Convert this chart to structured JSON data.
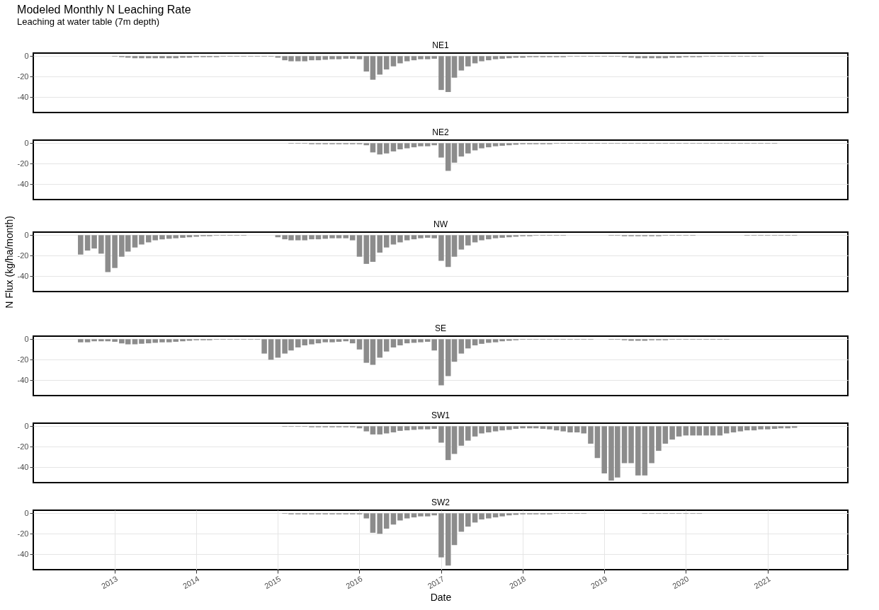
{
  "chart_data": [
    {
      "type": "bar",
      "title": "Modeled Monthly N Leaching Rate",
      "subtitle": "Leaching at water table (7m depth)",
      "tick_labels": "y",
      "grid": true,
      "xlim": [
        "2012-01-18",
        "2021-12-10"
      ],
      "ylim": [
        -55,
        3
      ],
      "yticks": [
        0,
        -20,
        -40
      ],
      "x": [
        "2013-01",
        "2013-02",
        "2013-03",
        "2013-04",
        "2013-05",
        "2013-06",
        "2013-07",
        "2013-08",
        "2013-09",
        "2013-10",
        "2013-11",
        "2013-12",
        "2014-01",
        "2014-02",
        "2014-03",
        "2014-04",
        "2014-05",
        "2014-06",
        "2014-07",
        "2014-08",
        "2014-09",
        "2014-10",
        "2014-11",
        "2014-12",
        "2015-01",
        "2015-02",
        "2015-03",
        "2015-04",
        "2015-05",
        "2015-06",
        "2015-07",
        "2015-08",
        "2015-09",
        "2015-10",
        "2015-11",
        "2015-12",
        "2016-01",
        "2016-02",
        "2016-03",
        "2016-04",
        "2016-05",
        "2016-06",
        "2016-07",
        "2016-08",
        "2016-09",
        "2016-10",
        "2016-11",
        "2016-12",
        "2017-01",
        "2017-02",
        "2017-03",
        "2017-04",
        "2017-05",
        "2017-06",
        "2017-07",
        "2017-08",
        "2017-09",
        "2017-10",
        "2017-11",
        "2017-12",
        "2018-01",
        "2018-02",
        "2018-03",
        "2018-04",
        "2018-05",
        "2018-06",
        "2018-07",
        "2018-08",
        "2018-09",
        "2018-10",
        "2018-11",
        "2018-12",
        "2019-01",
        "2019-02",
        "2019-03",
        "2019-04",
        "2019-05",
        "2019-06",
        "2019-07",
        "2019-08",
        "2019-09",
        "2019-10",
        "2019-11",
        "2019-12",
        "2020-01",
        "2020-02",
        "2020-03",
        "2020-04",
        "2020-05",
        "2020-06",
        "2020-07",
        "2020-08",
        "2020-09",
        "2020-10",
        "2020-11",
        "2020-12"
      ],
      "series": [
        {
          "name": "NE1",
          "color": "#8c8c8c",
          "values": [
            -0.5,
            -1,
            -1.5,
            -2,
            -2,
            -2,
            -2,
            -2,
            -2,
            -2,
            -1.5,
            -1.5,
            -1,
            -1,
            -1,
            -1,
            -0.5,
            -0.5,
            -0.5,
            -0.5,
            -0.5,
            -0.5,
            -0.5,
            -0.5,
            -1.5,
            -4,
            -5,
            -5,
            -5,
            -4,
            -4,
            -3.5,
            -3,
            -3,
            -2.5,
            -2.5,
            -3,
            -15,
            -23,
            -18,
            -13,
            -10,
            -7,
            -5,
            -4,
            -3,
            -3,
            -2.5,
            -33,
            -35,
            -21,
            -14,
            -10,
            -7,
            -5,
            -4,
            -3,
            -2.5,
            -2,
            -1.5,
            -1.5,
            -1,
            -1,
            -1,
            -1,
            -1,
            -1,
            -0.5,
            -0.5,
            -0.5,
            -0.5,
            -0.5,
            -0.5,
            -0.5,
            -0.5,
            -1,
            -1.5,
            -2,
            -2,
            -2,
            -2,
            -2,
            -1.5,
            -1.5,
            -1,
            -1,
            -1,
            -0.5,
            -0.5,
            -0.5,
            -0.5,
            -0.5,
            -0.5,
            -0.5,
            -0.5,
            -0.5
          ]
        }
      ]
    },
    {
      "type": "bar",
      "tick_labels": "y",
      "grid": true,
      "xlim": [
        "2012-01-18",
        "2021-12-10"
      ],
      "ylim": [
        -55,
        3
      ],
      "yticks": [
        0,
        -20,
        -40
      ],
      "x": [
        "2015-03",
        "2015-04",
        "2015-05",
        "2015-06",
        "2015-07",
        "2015-08",
        "2015-09",
        "2015-10",
        "2015-11",
        "2015-12",
        "2016-01",
        "2016-02",
        "2016-03",
        "2016-04",
        "2016-05",
        "2016-06",
        "2016-07",
        "2016-08",
        "2016-09",
        "2016-10",
        "2016-11",
        "2016-12",
        "2017-01",
        "2017-02",
        "2017-03",
        "2017-04",
        "2017-05",
        "2017-06",
        "2017-07",
        "2017-08",
        "2017-09",
        "2017-10",
        "2017-11",
        "2017-12",
        "2018-01",
        "2018-02",
        "2018-03",
        "2018-04",
        "2018-05",
        "2018-06",
        "2018-07",
        "2018-08",
        "2018-09",
        "2018-10",
        "2018-11",
        "2018-12",
        "2019-01",
        "2019-02",
        "2019-03",
        "2019-04",
        "2019-05",
        "2019-06",
        "2019-07",
        "2019-08",
        "2019-09",
        "2019-10",
        "2019-11",
        "2019-12",
        "2020-01",
        "2020-02",
        "2020-03",
        "2020-04",
        "2020-05",
        "2020-06",
        "2020-07",
        "2020-08",
        "2020-09",
        "2020-10",
        "2020-11",
        "2020-12",
        "2021-01",
        "2021-02"
      ],
      "series": [
        {
          "name": "NE2",
          "color": "#8c8c8c",
          "values": [
            -0.5,
            -0.5,
            -0.5,
            -1,
            -1,
            -1,
            -1,
            -1,
            -1,
            -1,
            -1,
            -2,
            -9,
            -11,
            -10,
            -8,
            -6,
            -5,
            -4,
            -3,
            -3,
            -2,
            -14,
            -27,
            -19,
            -13,
            -10,
            -7,
            -5,
            -4,
            -3,
            -2.5,
            -2,
            -1.5,
            -1,
            -1,
            -1,
            -1,
            -1,
            -0.5,
            -0.5,
            -0.5,
            -0.5,
            -0.5,
            -0.5,
            -0.5,
            -0.5,
            -0.5,
            -0.5,
            -0.5,
            -0.5,
            -0.5,
            -0.5,
            -0.5,
            -0.5,
            -0.5,
            -0.5,
            -0.5,
            -0.5,
            -0.5,
            -0.5,
            -0.5,
            -0.5,
            -0.5,
            -0.5,
            -0.5,
            -0.5,
            -0.5,
            -0.5,
            -0.5,
            -0.5,
            -0.5
          ]
        }
      ]
    },
    {
      "type": "bar",
      "ylabel": "N Flux (kg/ha/month)",
      "tick_labels": "y",
      "grid": true,
      "xlim": [
        "2012-01-18",
        "2021-12-10"
      ],
      "ylim": [
        -55,
        3
      ],
      "yticks": [
        0,
        -20,
        -40
      ],
      "x": [
        "2012-08",
        "2012-09",
        "2012-10",
        "2012-11",
        "2012-12",
        "2013-01",
        "2013-02",
        "2013-03",
        "2013-04",
        "2013-05",
        "2013-06",
        "2013-07",
        "2013-08",
        "2013-09",
        "2013-10",
        "2013-11",
        "2013-12",
        "2014-01",
        "2014-02",
        "2014-03",
        "2014-04",
        "2014-05",
        "2014-06",
        "2014-07",
        "2014-08",
        "2014-09",
        "2014-10",
        "2014-11",
        "2014-12",
        "2015-01",
        "2015-02",
        "2015-03",
        "2015-04",
        "2015-05",
        "2015-06",
        "2015-07",
        "2015-08",
        "2015-09",
        "2015-10",
        "2015-11",
        "2015-12",
        "2016-01",
        "2016-02",
        "2016-03",
        "2016-04",
        "2016-05",
        "2016-06",
        "2016-07",
        "2016-08",
        "2016-09",
        "2016-10",
        "2016-11",
        "2016-12",
        "2017-01",
        "2017-02",
        "2017-03",
        "2017-04",
        "2017-05",
        "2017-06",
        "2017-07",
        "2017-08",
        "2017-09",
        "2017-10",
        "2017-11",
        "2017-12",
        "2018-01",
        "2018-02",
        "2018-03",
        "2018-04",
        "2018-05",
        "2018-06",
        "2018-07",
        "2018-08",
        "2018-09",
        "2018-10",
        "2018-11",
        "2018-12",
        "2019-01",
        "2019-02",
        "2019-03",
        "2019-04",
        "2019-05",
        "2019-06",
        "2019-07",
        "2019-08",
        "2019-09",
        "2019-10",
        "2019-11",
        "2019-12",
        "2020-01",
        "2020-02",
        "2020-03",
        "2020-04",
        "2020-05",
        "2020-06",
        "2020-07",
        "2020-08",
        "2020-09",
        "2020-10",
        "2020-11",
        "2020-12",
        "2021-01",
        "2021-02",
        "2021-03",
        "2021-04",
        "2021-05"
      ],
      "series": [
        {
          "name": "NW",
          "color": "#8c8c8c",
          "values": [
            -19,
            -15,
            -13,
            -18,
            -36,
            -32,
            -21,
            -16,
            -12,
            -9,
            -7,
            -5,
            -4,
            -3.5,
            -3,
            -2.5,
            -2,
            -1.5,
            -1,
            -1,
            -0.5,
            -0.5,
            -0.5,
            -0.5,
            -0.5,
            null,
            null,
            null,
            null,
            -2,
            -4,
            -5,
            -5,
            -5,
            -4,
            -4,
            -3.5,
            -3,
            -3,
            -3,
            -5,
            -21,
            -28,
            -26,
            -17,
            -12,
            -9,
            -7,
            -5,
            -4,
            -3,
            -2.5,
            -3,
            -25,
            -31,
            -21,
            -14,
            -10,
            -7,
            -5,
            -4,
            -3,
            -2.5,
            -2,
            -1.5,
            -1,
            -1,
            -0.5,
            -0.5,
            -0.5,
            -0.5,
            -0.5,
            null,
            null,
            null,
            null,
            null,
            null,
            -0.5,
            -0.5,
            -1,
            -1,
            -1,
            -1,
            -1,
            -1,
            -0.5,
            -0.5,
            -0.5,
            -0.5,
            -0.5,
            null,
            null,
            null,
            null,
            null,
            null,
            null,
            -0.5,
            -0.5,
            -0.5,
            -0.5,
            -0.5,
            -0.5,
            -0.5,
            -0.5
          ]
        }
      ]
    },
    {
      "type": "bar",
      "tick_labels": "y",
      "grid": true,
      "xlim": [
        "2012-01-18",
        "2021-12-10"
      ],
      "ylim": [
        -55,
        3
      ],
      "yticks": [
        0,
        -20,
        -40
      ],
      "x": [
        "2012-08",
        "2012-09",
        "2012-10",
        "2012-11",
        "2012-12",
        "2013-01",
        "2013-02",
        "2013-03",
        "2013-04",
        "2013-05",
        "2013-06",
        "2013-07",
        "2013-08",
        "2013-09",
        "2013-10",
        "2013-11",
        "2013-12",
        "2014-01",
        "2014-02",
        "2014-03",
        "2014-04",
        "2014-05",
        "2014-06",
        "2014-07",
        "2014-08",
        "2014-09",
        "2014-10",
        "2014-11",
        "2014-12",
        "2015-01",
        "2015-02",
        "2015-03",
        "2015-04",
        "2015-05",
        "2015-06",
        "2015-07",
        "2015-08",
        "2015-09",
        "2015-10",
        "2015-11",
        "2015-12",
        "2016-01",
        "2016-02",
        "2016-03",
        "2016-04",
        "2016-05",
        "2016-06",
        "2016-07",
        "2016-08",
        "2016-09",
        "2016-10",
        "2016-11",
        "2016-12",
        "2017-01",
        "2017-02",
        "2017-03",
        "2017-04",
        "2017-05",
        "2017-06",
        "2017-07",
        "2017-08",
        "2017-09",
        "2017-10",
        "2017-11",
        "2017-12",
        "2018-01",
        "2018-02",
        "2018-03",
        "2018-04",
        "2018-05",
        "2018-06",
        "2018-07",
        "2018-08",
        "2018-09",
        "2018-10",
        "2018-11",
        "2018-12",
        "2019-01",
        "2019-02",
        "2019-03",
        "2019-04",
        "2019-05",
        "2019-06",
        "2019-07",
        "2019-08",
        "2019-09",
        "2019-10",
        "2019-11",
        "2019-12",
        "2020-01",
        "2020-02",
        "2020-03",
        "2020-04",
        "2020-05",
        "2020-06",
        "2020-07"
      ],
      "series": [
        {
          "name": "SE",
          "color": "#8c8c8c",
          "values": [
            -3,
            -3,
            -2,
            -2,
            -2,
            -2.5,
            -4,
            -5,
            -5,
            -4.5,
            -4,
            -3.5,
            -3,
            -3,
            -2.5,
            -2,
            -1.5,
            -1,
            -1,
            -1,
            -0.5,
            -0.5,
            -0.5,
            -0.5,
            -0.5,
            -0.5,
            -0.5,
            -14,
            -20,
            -18,
            -14,
            -11,
            -8,
            -6,
            -5,
            -4,
            -3,
            -3,
            -2.5,
            -2,
            -4,
            -10,
            -23,
            -25,
            -18,
            -12,
            -8,
            -6,
            -4,
            -3.5,
            -3,
            -2.5,
            -11,
            -45,
            -36,
            -22,
            -14,
            -9,
            -6,
            -4.5,
            -3.5,
            -3,
            -2,
            -1.5,
            -1,
            -0.5,
            -0.5,
            -0.5,
            -0.5,
            -0.5,
            -0.5,
            -0.5,
            -0.5,
            -0.5,
            -0.5,
            -0.5,
            null,
            null,
            -0.5,
            -0.5,
            -1,
            -1.5,
            -1.5,
            -1.5,
            -1,
            -1,
            -1,
            -0.5,
            -0.5,
            -0.5,
            -0.5,
            -0.5,
            -0.5,
            -0.5,
            -0.5,
            -0.5
          ]
        }
      ]
    },
    {
      "type": "bar",
      "tick_labels": "y",
      "grid": true,
      "xlim": [
        "2012-01-18",
        "2021-12-10"
      ],
      "ylim": [
        -55,
        3
      ],
      "yticks": [
        0,
        -20,
        -40
      ],
      "x": [
        "2015-02",
        "2015-03",
        "2015-04",
        "2015-05",
        "2015-06",
        "2015-07",
        "2015-08",
        "2015-09",
        "2015-10",
        "2015-11",
        "2015-12",
        "2016-01",
        "2016-02",
        "2016-03",
        "2016-04",
        "2016-05",
        "2016-06",
        "2016-07",
        "2016-08",
        "2016-09",
        "2016-10",
        "2016-11",
        "2016-12",
        "2017-01",
        "2017-02",
        "2017-03",
        "2017-04",
        "2017-05",
        "2017-06",
        "2017-07",
        "2017-08",
        "2017-09",
        "2017-10",
        "2017-11",
        "2017-12",
        "2018-01",
        "2018-02",
        "2018-03",
        "2018-04",
        "2018-05",
        "2018-06",
        "2018-07",
        "2018-08",
        "2018-09",
        "2018-10",
        "2018-11",
        "2018-12",
        "2019-01",
        "2019-02",
        "2019-03",
        "2019-04",
        "2019-05",
        "2019-06",
        "2019-07",
        "2019-08",
        "2019-09",
        "2019-10",
        "2019-11",
        "2019-12",
        "2020-01",
        "2020-02",
        "2020-03",
        "2020-04",
        "2020-05",
        "2020-06",
        "2020-07",
        "2020-08",
        "2020-09",
        "2020-10",
        "2020-11",
        "2020-12",
        "2021-01",
        "2021-02",
        "2021-03",
        "2021-04",
        "2021-05"
      ],
      "series": [
        {
          "name": "SW1",
          "color": "#8c8c8c",
          "values": [
            -0.5,
            -0.5,
            -0.5,
            -0.5,
            -1,
            -1,
            -1,
            -1,
            -1,
            -1,
            -1,
            -2,
            -5,
            -8,
            -8,
            -7,
            -6,
            -4.5,
            -4,
            -3.5,
            -3,
            -3,
            -2.5,
            -16,
            -33,
            -27,
            -19,
            -14,
            -10,
            -7,
            -6,
            -5,
            -4,
            -3.5,
            -2.5,
            -2,
            -2,
            -2,
            -2.5,
            -3,
            -4,
            -5,
            -6,
            -6,
            -7,
            -17,
            -31,
            -46,
            -53,
            -50,
            -36,
            -36,
            -48,
            -48,
            -36,
            -24,
            -17,
            -13,
            -10,
            -9,
            -9,
            -9,
            -9,
            -9,
            -9,
            -7,
            -6,
            -5,
            -4,
            -4,
            -3,
            -3,
            -2.5,
            -2,
            -2,
            -1.5
          ]
        }
      ]
    },
    {
      "type": "bar",
      "xlabel": "Date",
      "grid": true,
      "xlim": [
        "2012-01-18",
        "2021-12-10"
      ],
      "ylim": [
        -55,
        3
      ],
      "yticks": [
        0,
        -20,
        -40
      ],
      "xticks": [
        "2013",
        "2014",
        "2015",
        "2016",
        "2017",
        "2018",
        "2019",
        "2020",
        "2021"
      ],
      "x": [
        "2015-02",
        "2015-03",
        "2015-04",
        "2015-05",
        "2015-06",
        "2015-07",
        "2015-08",
        "2015-09",
        "2015-10",
        "2015-11",
        "2015-12",
        "2016-01",
        "2016-02",
        "2016-03",
        "2016-04",
        "2016-05",
        "2016-06",
        "2016-07",
        "2016-08",
        "2016-09",
        "2016-10",
        "2016-11",
        "2016-12",
        "2017-01",
        "2017-02",
        "2017-03",
        "2017-04",
        "2017-05",
        "2017-06",
        "2017-07",
        "2017-08",
        "2017-09",
        "2017-10",
        "2017-11",
        "2017-12",
        "2018-01",
        "2018-02",
        "2018-03",
        "2018-04",
        "2018-05",
        "2018-06",
        "2018-07",
        "2018-08",
        "2018-09",
        "2018-10",
        "2018-11",
        "2018-12",
        "2019-01",
        "2019-02",
        "2019-03",
        "2019-04",
        "2019-05",
        "2019-06",
        "2019-07",
        "2019-08",
        "2019-09",
        "2019-10",
        "2019-11",
        "2019-12",
        "2020-01",
        "2020-02",
        "2020-03"
      ],
      "series": [
        {
          "name": "SW2",
          "color": "#8c8c8c",
          "values": [
            -0.5,
            -1,
            -1,
            -1,
            -1,
            -1,
            -1,
            -1,
            -1,
            -1,
            -1,
            -1,
            -5,
            -19,
            -20,
            -15,
            -11,
            -7,
            -5,
            -4,
            -3,
            -3,
            -2,
            -43,
            -51,
            -31,
            -18,
            -13,
            -9,
            -6,
            -5,
            -4,
            -3,
            -2,
            -1.5,
            -1,
            -1,
            -1,
            -1,
            -1,
            -0.5,
            -0.5,
            -0.5,
            -0.5,
            -0.5,
            null,
            null,
            null,
            null,
            null,
            null,
            null,
            null,
            -0.5,
            -0.5,
            -0.5,
            -0.5,
            -0.5,
            -0.5,
            -0.5,
            -0.5,
            -0.5
          ]
        }
      ]
    }
  ]
}
